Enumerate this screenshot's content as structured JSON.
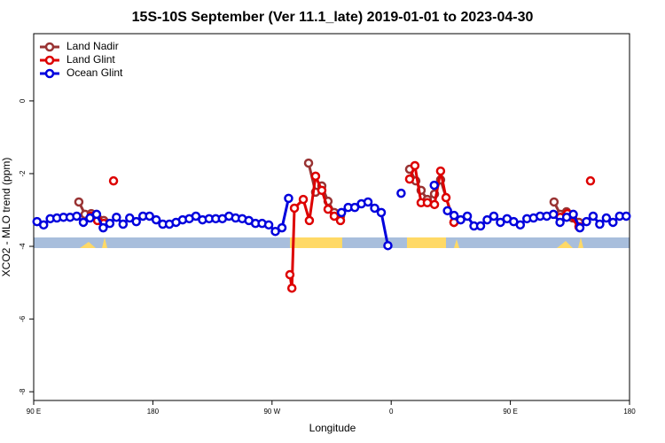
{
  "chart_data": {
    "type": "line",
    "title": "15S-10S September (Ver 11.1_late)   2019-01-01 to 2023-04-30",
    "xlabel": "Longitude",
    "ylabel": "XCO2 - MLO trend (ppm)",
    "xlim": [
      90,
      540
    ],
    "ylim": [
      1.85,
      -8.24
    ],
    "xticks": [
      {
        "value": 90,
        "label": "90 E"
      },
      180,
      {
        "value": 270,
        "label": "90 W"
      },
      {
        "value": 360,
        "label": "0"
      },
      {
        "value": 450,
        "label": "90 E"
      },
      {
        "value": 540,
        "label": "180"
      }
    ],
    "yticks": [
      0,
      -2,
      -4,
      -6,
      -8
    ],
    "legend": "upper left",
    "series": [
      {
        "name": "Land Nadir",
        "color": "#993333",
        "x": [
          124.1,
          128.8,
          133.5,
          138.2,
          142.9,
          null,
          297.6,
          302.9,
          307.6,
          312.3,
          317,
          321.7,
          null,
          373.9,
          378.6,
          382.6,
          387.3,
          392.7,
          397.3,
          407.4,
          null,
          483,
          487.7,
          492.4,
          497.1,
          501.8
        ],
        "values": [
          -2.78,
          -3.12,
          -3.1,
          -3.22,
          -3.29,
          null,
          -1.71,
          -2.51,
          -2.34,
          -2.76,
          -3.07,
          -3.17,
          null,
          -1.88,
          -2.2,
          -2.46,
          -2.71,
          -2.56,
          -2.17,
          -3.34,
          null,
          -2.78,
          -3.12,
          -3.05,
          -3.22,
          -3.34
        ]
      },
      {
        "name": "Land Glint",
        "color": "#dd0000",
        "x": [
          133.5,
          138.2,
          142.9,
          null,
          150.3,
          null,
          283.5,
          285,
          286.9,
          293.6,
          298.2,
          302.9,
          307.6,
          312.3,
          317,
          321.7,
          null,
          373.9,
          377.9,
          382.6,
          387.3,
          392.7,
          397.3,
          401.4,
          407.4,
          null,
          487.7,
          493.1,
          501.8,
          null,
          510.5
        ],
        "values": [
          -3.17,
          -3.29,
          -3.37,
          null,
          -2.2,
          null,
          -4.78,
          -5.15,
          -2.95,
          -2.71,
          -3.29,
          -2.07,
          -2.46,
          -2.98,
          -3.17,
          -3.29,
          null,
          -2.15,
          -1.78,
          -2.8,
          -2.8,
          -2.85,
          -1.93,
          -2.66,
          -3.34,
          null,
          -3.2,
          -3.1,
          -3.46,
          null,
          -2.2
        ]
      },
      {
        "name": "Ocean Glint",
        "color": "#0000dd",
        "x": [
          92.5,
          97.5,
          102.5,
          107.5,
          112.5,
          117.5,
          122.5,
          127.5,
          132.5,
          137.5,
          142.5,
          147.5,
          152.5,
          157.5,
          162.5,
          167.5,
          172.5,
          177.5,
          182.5,
          187.5,
          192.5,
          197.5,
          202.5,
          207.5,
          212.5,
          217.5,
          222.5,
          227.5,
          232.5,
          237.5,
          242.5,
          247.5,
          252.5,
          257.5,
          262.5,
          267.5,
          272.5,
          277.5,
          282.5,
          null,
          322.5,
          327.5,
          332.5,
          337.5,
          342.5,
          347.5,
          352.5,
          357.5,
          null,
          367.5,
          null,
          392.5,
          null,
          402.5,
          407.5,
          412.5,
          417.5,
          422.5,
          427.5,
          432.5,
          437.5,
          442.5,
          447.5,
          452.5,
          457.5,
          462.5,
          467.5,
          472.5,
          477.5,
          482.5,
          487.5,
          492.5,
          497.5,
          502.5,
          507.5,
          512.5,
          517.5,
          522.5,
          527.5,
          532.5,
          537.5
        ],
        "values": [
          -3.32,
          -3.41,
          -3.24,
          -3.22,
          -3.2,
          -3.2,
          -3.17,
          -3.34,
          -3.22,
          -3.12,
          -3.49,
          -3.37,
          -3.2,
          -3.39,
          -3.22,
          -3.32,
          -3.17,
          -3.17,
          -3.27,
          -3.39,
          -3.39,
          -3.34,
          -3.27,
          -3.24,
          -3.17,
          -3.27,
          -3.24,
          -3.24,
          -3.24,
          -3.17,
          -3.22,
          -3.24,
          -3.29,
          -3.37,
          -3.37,
          -3.41,
          -3.59,
          -3.49,
          -2.68,
          null,
          -3.07,
          -2.93,
          -2.93,
          -2.83,
          -2.78,
          -2.95,
          -3.07,
          -3.98,
          null,
          -2.54,
          null,
          -2.32,
          null,
          -3.02,
          -3.15,
          -3.27,
          -3.17,
          -3.44,
          -3.44,
          -3.27,
          -3.17,
          -3.34,
          -3.24,
          -3.32,
          -3.41,
          -3.24,
          -3.22,
          -3.17,
          -3.17,
          -3.12,
          -3.34,
          -3.2,
          -3.12,
          -3.49,
          -3.32,
          -3.17,
          -3.39,
          -3.22,
          -3.34,
          -3.17,
          -3.17
        ]
      }
    ]
  }
}
